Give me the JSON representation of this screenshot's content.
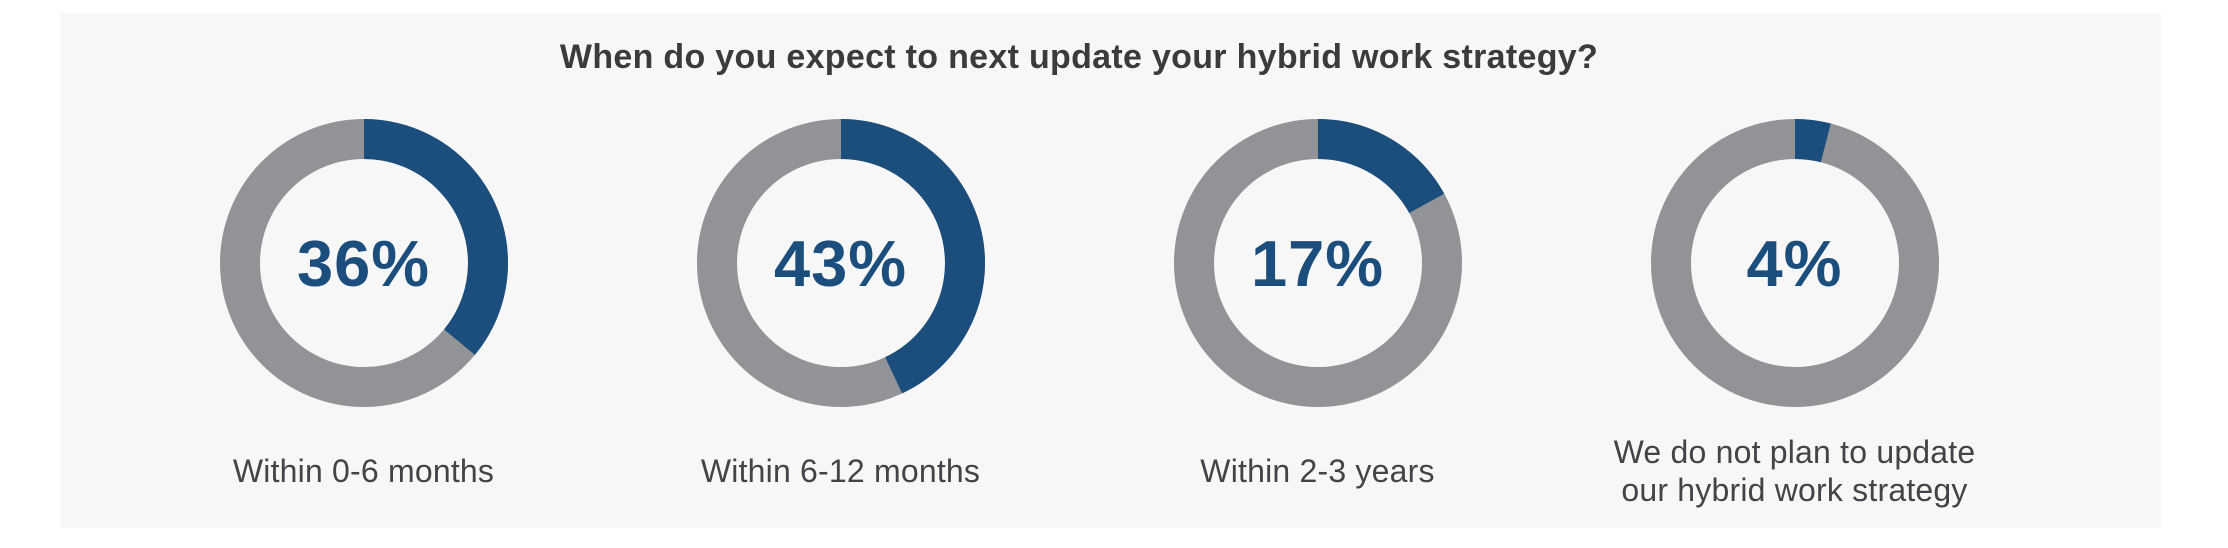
{
  "chart_data": {
    "type": "pie",
    "subtype": "donut-small-multiples",
    "title": "When do you expect to next update your hybrid work strategy?",
    "categories": [
      "Within 0-6 months",
      "Within 6-12 months",
      "Within 2-3 years",
      "We do not plan to update our hybrid work strategy"
    ],
    "values": [
      36,
      43,
      17,
      4
    ],
    "items": [
      {
        "value": 36,
        "label": "36%",
        "category_lines": [
          "Within 0-6 months"
        ]
      },
      {
        "value": 43,
        "label": "43%",
        "category_lines": [
          "Within 6-12 months"
        ]
      },
      {
        "value": 17,
        "label": "17%",
        "category_lines": [
          "Within 2-3 years"
        ]
      },
      {
        "value": 4,
        "label": "4%",
        "category_lines": [
          "We do not plan to update",
          "our hybrid work strategy"
        ]
      }
    ],
    "start_angle_deg": 0,
    "direction": "clockwise",
    "legend": "none",
    "colors": {
      "value_arc": "#1B4E7D",
      "remainder_arc": "#919396",
      "percent_text": "#1B4E7D",
      "title_text": "#3B3B3E",
      "category_text": "#444448",
      "panel_background": "#F7F7F7",
      "page_background": "#FFFFFF"
    }
  }
}
